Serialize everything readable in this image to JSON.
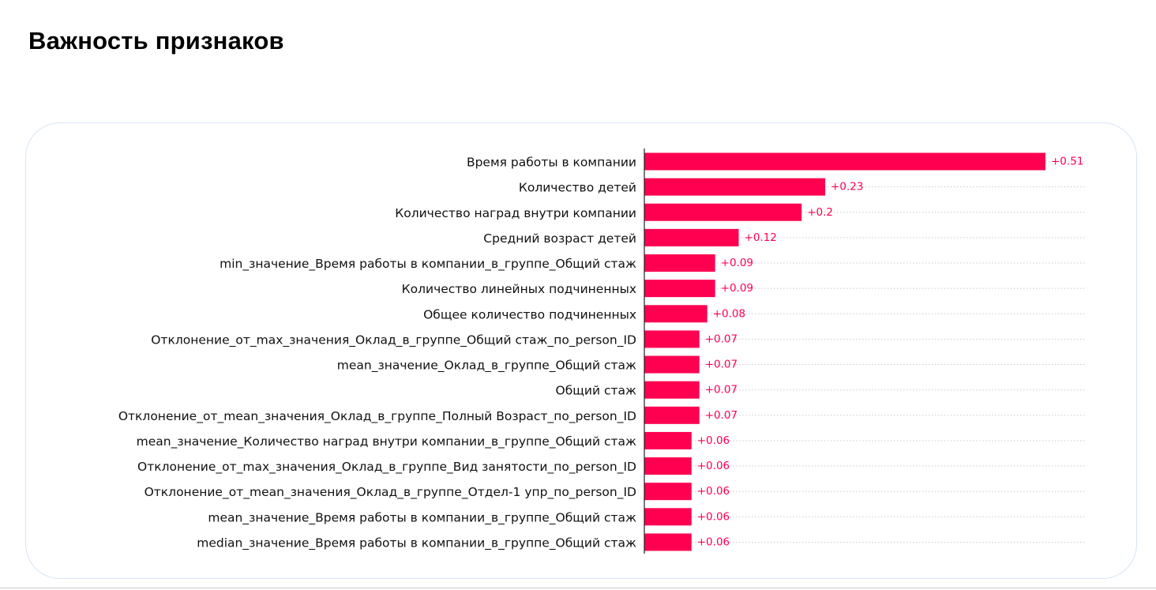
{
  "page": {
    "title": "Важность признаков"
  },
  "colors": {
    "bar": "#ff0051",
    "value_text": "#ff0051",
    "axis": "#222222",
    "grid": "#cccccc"
  },
  "chart_data": {
    "type": "bar",
    "orientation": "horizontal",
    "title": "",
    "xlabel": "",
    "ylabel": "",
    "xlim": [
      0,
      0.56
    ],
    "grid": "dotted row guides",
    "legend": "none",
    "categories": [
      "Время работы в компании",
      "Количество детей",
      "Количество наград внутри компании",
      "Средний возраст детей",
      "min_значение_Время работы в компании_в_группе_Общий стаж",
      "Количество линейных подчиненных",
      "Общее количество подчиненных",
      "Отклонение_от_max_значения_Оклад_в_группе_Общий стаж_по_person_ID",
      "mean_значение_Оклад_в_группе_Общий стаж",
      "Общий стаж",
      "Отклонение_от_mean_значения_Оклад_в_группе_Полный Возраст_по_person_ID",
      "mean_значение_Количество наград внутри компании_в_группе_Общий стаж",
      "Отклонение_от_max_значения_Оклад_в_группе_Вид занятости_по_person_ID",
      "Отклонение_от_mean_значения_Оклад_в_группе_Отдел-1 упр_по_person_ID",
      "mean_значение_Время работы в компании_в_группе_Общий стаж",
      "median_значение_Время работы в компании_в_группе_Общий стаж"
    ],
    "values": [
      0.51,
      0.23,
      0.2,
      0.12,
      0.09,
      0.09,
      0.08,
      0.07,
      0.07,
      0.07,
      0.07,
      0.06,
      0.06,
      0.06,
      0.06,
      0.06
    ],
    "value_labels": [
      "+0.51",
      "+0.23",
      "+0.2",
      "+0.12",
      "+0.09",
      "+0.09",
      "+0.08",
      "+0.07",
      "+0.07",
      "+0.07",
      "+0.07",
      "+0.06",
      "+0.06",
      "+0.06",
      "+0.06",
      "+0.06"
    ]
  }
}
